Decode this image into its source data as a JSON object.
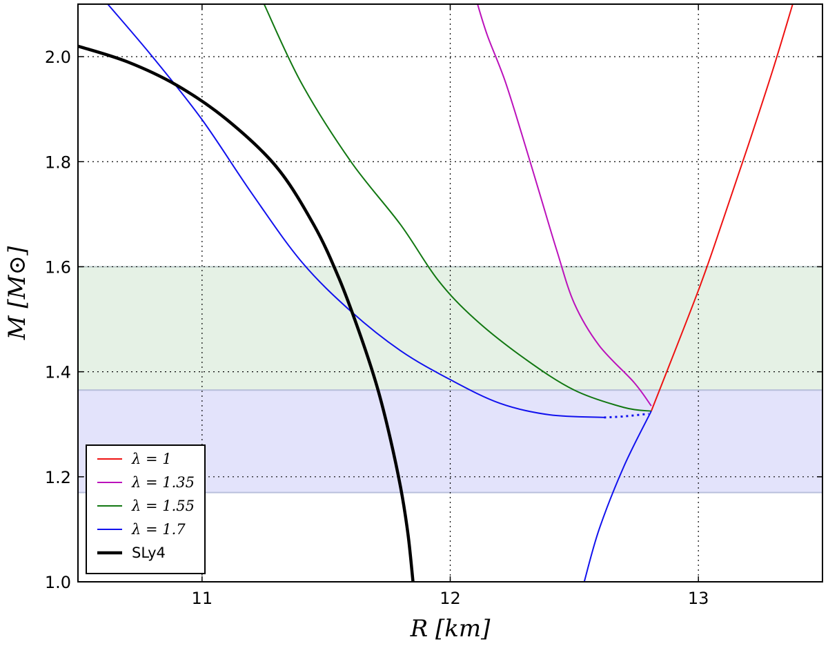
{
  "chart_data": {
    "type": "line",
    "xlabel": "R [km]",
    "ylabel": "M [M⊙]",
    "xlim": [
      10.5,
      13.5
    ],
    "ylim": [
      1.0,
      2.1
    ],
    "xticks": [
      11,
      12,
      13
    ],
    "yticks": [
      1.0,
      1.2,
      1.4,
      1.6,
      1.8,
      2.0
    ],
    "xtick_labels": [
      "11",
      "12",
      "13"
    ],
    "ytick_labels": [
      "1.0",
      "1.2",
      "1.4",
      "1.6",
      "1.8",
      "2.0"
    ],
    "grid": true,
    "legend_position": "lower-left",
    "bands": [
      {
        "ymin": 1.365,
        "ymax": 1.6,
        "color": "#e5f1e5",
        "edge": "#b9c9c9"
      },
      {
        "ymin": 1.17,
        "ymax": 1.365,
        "color": "#e3e3fb",
        "edge": "#b9bfdc"
      }
    ],
    "series": [
      {
        "name": "λ = 1",
        "color": "#ee1111",
        "width": 2,
        "points": [
          [
            12.81,
            1.325
          ],
          [
            13.0,
            1.555
          ],
          [
            13.1,
            1.69
          ],
          [
            13.2,
            1.83
          ],
          [
            13.3,
            1.975
          ],
          [
            13.38,
            2.1
          ]
        ]
      },
      {
        "name": "λ = 1.35",
        "color": "#bb11bb",
        "width": 2,
        "points": [
          [
            12.81,
            1.335
          ],
          [
            12.74,
            1.38
          ],
          [
            12.6,
            1.45
          ],
          [
            12.5,
            1.53
          ],
          [
            12.43,
            1.63
          ],
          [
            12.36,
            1.74
          ],
          [
            12.29,
            1.85
          ],
          [
            12.22,
            1.955
          ],
          [
            12.15,
            2.04
          ],
          [
            12.11,
            2.1
          ]
        ]
      },
      {
        "name": "λ = 1.55",
        "color": "#117711",
        "width": 2,
        "points": [
          [
            12.81,
            1.325
          ],
          [
            12.7,
            1.332
          ],
          [
            12.5,
            1.365
          ],
          [
            12.3,
            1.425
          ],
          [
            12.1,
            1.5
          ],
          [
            11.95,
            1.575
          ],
          [
            11.8,
            1.68
          ],
          [
            11.6,
            1.8
          ],
          [
            11.4,
            1.95
          ],
          [
            11.25,
            2.1
          ]
        ]
      },
      {
        "name": "λ = 1.7",
        "color": "#1111ee",
        "width": 2,
        "points": [
          [
            12.62,
            1.313
          ],
          [
            12.4,
            1.318
          ],
          [
            12.2,
            1.34
          ],
          [
            12.0,
            1.385
          ],
          [
            11.8,
            1.44
          ],
          [
            11.6,
            1.515
          ],
          [
            11.4,
            1.61
          ],
          [
            11.2,
            1.74
          ],
          [
            11.0,
            1.88
          ],
          [
            10.8,
            2.0
          ],
          [
            10.62,
            2.1
          ]
        ]
      },
      {
        "name": "λ = 1.7 (dotted segment)",
        "color": "#1111ee",
        "width": 3,
        "dashed": true,
        "points": [
          [
            12.62,
            1.313
          ],
          [
            12.7,
            1.315
          ],
          [
            12.8,
            1.32
          ]
        ]
      },
      {
        "name": "λ = 1.7 (lower branch)",
        "color": "#1111ee",
        "width": 2,
        "points": [
          [
            12.81,
            1.325
          ],
          [
            12.7,
            1.22
          ],
          [
            12.6,
            1.1
          ],
          [
            12.54,
            1.0
          ]
        ]
      },
      {
        "name": "SLy4",
        "color": "#000000",
        "width": 4.5,
        "points": [
          [
            10.5,
            2.02
          ],
          [
            10.7,
            1.99
          ],
          [
            10.9,
            1.945
          ],
          [
            11.1,
            1.88
          ],
          [
            11.3,
            1.79
          ],
          [
            11.45,
            1.68
          ],
          [
            11.55,
            1.58
          ],
          [
            11.63,
            1.48
          ],
          [
            11.7,
            1.38
          ],
          [
            11.75,
            1.29
          ],
          [
            11.8,
            1.18
          ],
          [
            11.83,
            1.09
          ],
          [
            11.85,
            1.0
          ]
        ]
      }
    ],
    "legend": [
      {
        "label": "λ = 1",
        "color": "#ee1111",
        "width": 2
      },
      {
        "label": "λ = 1.35",
        "color": "#bb11bb",
        "width": 2
      },
      {
        "label": "λ = 1.55",
        "color": "#117711",
        "width": 2
      },
      {
        "label": "λ = 1.7",
        "color": "#1111ee",
        "width": 2
      },
      {
        "label": "SLy4",
        "color": "#000000",
        "width": 4.5
      }
    ]
  }
}
